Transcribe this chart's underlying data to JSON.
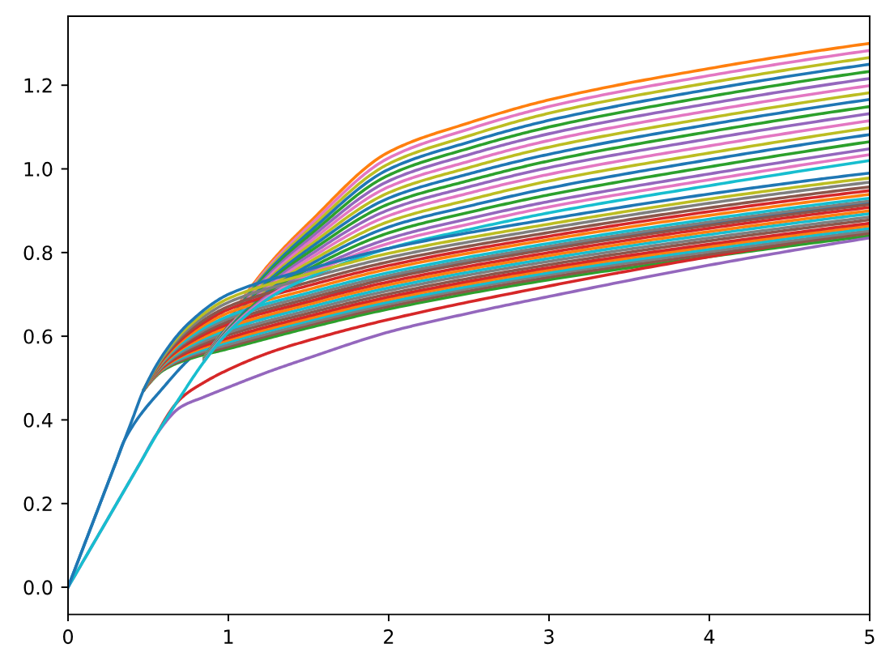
{
  "chart_data": {
    "type": "line",
    "xlim": [
      0,
      5
    ],
    "ylim": [
      -0.065,
      1.365
    ],
    "xticks": [
      0,
      1,
      2,
      3,
      4,
      5
    ],
    "yticks": [
      {
        "value": 0,
        "label": "0.0"
      },
      {
        "value": 0.2,
        "label": "0.2"
      },
      {
        "value": 0.4,
        "label": "0.4"
      },
      {
        "value": 0.6,
        "label": "0.6"
      },
      {
        "value": 0.8,
        "label": "0.8"
      },
      {
        "value": 1.0,
        "label": "1.0"
      },
      {
        "value": 1.2,
        "label": "1.2"
      }
    ],
    "series": [
      {
        "color": "#1f77b4",
        "x": [
          0,
          0.3,
          0.35,
          0.6,
          0.8,
          1,
          1.5,
          2,
          3,
          4,
          5
        ],
        "values": [
          0,
          0.3,
          0.35,
          0.48,
          0.56,
          0.61,
          0.68,
          0.74,
          0.81,
          0.87,
          0.92
        ]
      },
      {
        "color": "#ff7f0e",
        "x": [
          0.85,
          1,
          1.25,
          1.5,
          2,
          2.5,
          3,
          4,
          5
        ],
        "values": [
          0.55,
          0.64,
          0.77,
          0.87,
          1.04,
          1.11,
          1.165,
          1.24,
          1.3
        ]
      },
      {
        "color": "#2ca02c",
        "x": [
          0.47,
          0.6,
          0.75,
          1,
          1.5,
          2,
          3,
          4,
          5
        ],
        "values": [
          0.47,
          0.52,
          0.545,
          0.57,
          0.62,
          0.665,
          0.735,
          0.79,
          0.84
        ]
      },
      {
        "color": "#d62728",
        "x": [
          0.56,
          0.7,
          0.85,
          1,
          1.25,
          1.5,
          2,
          3,
          4,
          5
        ],
        "values": [
          0.37,
          0.45,
          0.49,
          0.52,
          0.56,
          0.59,
          0.64,
          0.72,
          0.79,
          0.85
        ]
      },
      {
        "color": "#9467bd",
        "x": [
          0,
          0.45,
          0.56,
          0.7,
          0.85,
          1,
          1.25,
          1.5,
          2,
          2.5,
          3,
          4,
          5
        ],
        "values": [
          0,
          0.297,
          0.37,
          0.43,
          0.455,
          0.478,
          0.515,
          0.548,
          0.61,
          0.655,
          0.695,
          0.77,
          0.835
        ]
      },
      {
        "color": "#8c564b",
        "x": [
          0.47,
          0.6,
          0.75,
          1,
          1.5,
          2,
          3,
          4,
          5
        ],
        "values": [
          0.47,
          0.522,
          0.548,
          0.575,
          0.626,
          0.671,
          0.741,
          0.796,
          0.846
        ]
      },
      {
        "color": "#e377c2",
        "x": [
          0.85,
          1,
          1.25,
          1.5,
          2,
          2.5,
          3,
          4,
          5
        ],
        "values": [
          0.549,
          0.638,
          0.765,
          0.862,
          1.026,
          1.095,
          1.149,
          1.223,
          1.283
        ]
      },
      {
        "color": "#7f7f7f",
        "x": [
          0.47,
          0.6,
          0.75,
          1,
          1.5,
          2,
          3,
          4,
          5
        ],
        "values": [
          0.47,
          0.523,
          0.552,
          0.58,
          0.631,
          0.677,
          0.747,
          0.802,
          0.852
        ]
      },
      {
        "color": "#bcbd22",
        "x": [
          0.85,
          1,
          1.25,
          1.5,
          2,
          2.5,
          3,
          4,
          5
        ],
        "values": [
          0.549,
          0.636,
          0.76,
          0.854,
          1.012,
          1.079,
          1.133,
          1.206,
          1.266
        ]
      },
      {
        "color": "#17becf",
        "x": [
          0.47,
          0.6,
          0.75,
          1,
          1.5,
          2,
          3,
          4,
          5
        ],
        "values": [
          0.47,
          0.525,
          0.555,
          0.586,
          0.637,
          0.682,
          0.752,
          0.808,
          0.858
        ]
      },
      {
        "color": "#1f77b4",
        "x": [
          0.85,
          1,
          1.25,
          1.5,
          2,
          2.5,
          3,
          4,
          5
        ],
        "values": [
          0.548,
          0.635,
          0.756,
          0.847,
          0.999,
          1.064,
          1.116,
          1.19,
          1.25
        ]
      },
      {
        "color": "#ff7f0e",
        "x": [
          0.47,
          0.6,
          0.75,
          1,
          1.5,
          2,
          3,
          4,
          5
        ],
        "values": [
          0.47,
          0.526,
          0.559,
          0.591,
          0.642,
          0.688,
          0.758,
          0.814,
          0.864
        ]
      },
      {
        "color": "#2ca02c",
        "x": [
          0.85,
          1,
          1.25,
          1.5,
          2,
          2.5,
          3,
          4,
          5
        ],
        "values": [
          0.548,
          0.633,
          0.751,
          0.839,
          0.985,
          1.049,
          1.1,
          1.173,
          1.233
        ]
      },
      {
        "color": "#d62728",
        "x": [
          0.47,
          0.6,
          0.75,
          1,
          1.5,
          2,
          3,
          4,
          5
        ],
        "values": [
          0.47,
          0.528,
          0.562,
          0.596,
          0.648,
          0.694,
          0.764,
          0.82,
          0.87
        ]
      },
      {
        "color": "#9467bd",
        "x": [
          0.85,
          1,
          1.25,
          1.5,
          2,
          2.5,
          3,
          4,
          5
        ],
        "values": [
          0.547,
          0.631,
          0.746,
          0.831,
          0.971,
          1.034,
          1.084,
          1.156,
          1.216
        ]
      },
      {
        "color": "#8c564b",
        "x": [
          0.47,
          0.6,
          0.75,
          1,
          1.5,
          2,
          3,
          4,
          5
        ],
        "values": [
          0.47,
          0.53,
          0.566,
          0.603,
          0.655,
          0.701,
          0.771,
          0.828,
          0.878
        ]
      },
      {
        "color": "#e377c2",
        "x": [
          0.85,
          1,
          1.25,
          1.5,
          2,
          2.5,
          3,
          4,
          5
        ],
        "values": [
          0.546,
          0.629,
          0.741,
          0.823,
          0.957,
          1.018,
          1.068,
          1.139,
          1.199
        ]
      },
      {
        "color": "#7f7f7f",
        "x": [
          0.47,
          0.6,
          0.75,
          1,
          1.5,
          2,
          3,
          4,
          5
        ],
        "values": [
          0.47,
          0.532,
          0.571,
          0.609,
          0.662,
          0.709,
          0.779,
          0.835,
          0.885
        ]
      },
      {
        "color": "#bcbd22",
        "x": [
          0.85,
          1,
          1.25,
          1.5,
          2,
          2.5,
          3,
          4,
          5
        ],
        "values": [
          0.546,
          0.627,
          0.736,
          0.815,
          0.943,
          1.003,
          1.052,
          1.122,
          1.182
        ]
      },
      {
        "color": "#17becf",
        "x": [
          0.47,
          0.6,
          0.75,
          1,
          1.5,
          2,
          3,
          4,
          5
        ],
        "values": [
          0.47,
          0.534,
          0.575,
          0.616,
          0.669,
          0.716,
          0.786,
          0.843,
          0.893
        ]
      },
      {
        "color": "#1f77b4",
        "x": [
          0.85,
          1,
          1.25,
          1.5,
          2,
          2.5,
          3,
          4,
          5
        ],
        "values": [
          0.545,
          0.626,
          0.732,
          0.808,
          0.93,
          0.988,
          1.035,
          1.106,
          1.166
        ]
      },
      {
        "color": "#ff7f0e",
        "x": [
          0.47,
          0.6,
          0.75,
          1,
          1.5,
          2,
          3,
          4,
          5
        ],
        "values": [
          0.47,
          0.536,
          0.579,
          0.622,
          0.676,
          0.723,
          0.793,
          0.85,
          0.9
        ]
      },
      {
        "color": "#2ca02c",
        "x": [
          0.85,
          1,
          1.25,
          1.5,
          2,
          2.5,
          3,
          4,
          5
        ],
        "values": [
          0.545,
          0.624,
          0.727,
          0.8,
          0.916,
          0.972,
          1.019,
          1.089,
          1.149
        ]
      },
      {
        "color": "#d62728",
        "x": [
          0.47,
          0.6,
          0.75,
          1,
          1.5,
          2,
          3,
          4,
          5
        ],
        "values": [
          0.47,
          0.538,
          0.583,
          0.629,
          0.683,
          0.73,
          0.8,
          0.858,
          0.908
        ]
      },
      {
        "color": "#9467bd",
        "x": [
          0.85,
          1,
          1.25,
          1.5,
          2,
          2.5,
          3,
          4,
          5
        ],
        "values": [
          0.544,
          0.622,
          0.722,
          0.792,
          0.902,
          0.957,
          1.003,
          1.072,
          1.132
        ]
      },
      {
        "color": "#8c564b",
        "x": [
          0.47,
          0.6,
          0.75,
          1,
          1.5,
          2,
          3,
          4,
          5
        ],
        "values": [
          0.47,
          0.54,
          0.588,
          0.635,
          0.69,
          0.738,
          0.808,
          0.865,
          0.915
        ]
      },
      {
        "color": "#e377c2",
        "x": [
          0.85,
          1,
          1.25,
          1.5,
          2,
          2.5,
          3,
          4,
          5
        ],
        "values": [
          0.543,
          0.62,
          0.717,
          0.784,
          0.888,
          0.942,
          0.987,
          1.055,
          1.115
        ]
      },
      {
        "color": "#7f7f7f",
        "x": [
          0.47,
          0.6,
          0.75,
          1,
          1.5,
          2,
          3,
          4,
          5
        ],
        "values": [
          0.47,
          0.542,
          0.592,
          0.642,
          0.697,
          0.745,
          0.815,
          0.873,
          0.923
        ]
      },
      {
        "color": "#bcbd22",
        "x": [
          0.85,
          1,
          1.25,
          1.5,
          2,
          2.5,
          3,
          4,
          5
        ],
        "values": [
          0.543,
          0.618,
          0.712,
          0.776,
          0.874,
          0.926,
          0.971,
          1.038,
          1.098
        ]
      },
      {
        "color": "#17becf",
        "x": [
          0.47,
          0.6,
          0.75,
          1,
          1.5,
          2,
          3,
          4,
          5
        ],
        "values": [
          0.47,
          0.544,
          0.596,
          0.648,
          0.704,
          0.752,
          0.822,
          0.88,
          0.93
        ]
      },
      {
        "color": "#1f77b4",
        "x": [
          0.85,
          1,
          1.25,
          1.5,
          2,
          2.5,
          3,
          4,
          5
        ],
        "values": [
          0.542,
          0.617,
          0.708,
          0.769,
          0.861,
          0.911,
          0.954,
          1.022,
          1.082
        ]
      },
      {
        "color": "#ff7f0e",
        "x": [
          0.47,
          0.6,
          0.75,
          1,
          1.5,
          2,
          3,
          4,
          5
        ],
        "values": [
          0.47,
          0.546,
          0.601,
          0.656,
          0.712,
          0.761,
          0.831,
          0.889,
          0.939
        ]
      },
      {
        "color": "#2ca02c",
        "x": [
          0.85,
          1,
          1.25,
          1.5,
          2,
          2.5,
          3,
          4,
          5
        ],
        "values": [
          0.542,
          0.615,
          0.703,
          0.761,
          0.847,
          0.896,
          0.938,
          1.005,
          1.065
        ]
      },
      {
        "color": "#d62728",
        "x": [
          0.47,
          0.6,
          0.75,
          1,
          1.5,
          2,
          3,
          4,
          5
        ],
        "values": [
          0.47,
          0.549,
          0.606,
          0.664,
          0.721,
          0.769,
          0.839,
          0.898,
          0.948
        ]
      },
      {
        "color": "#9467bd",
        "x": [
          0.85,
          1,
          1.25,
          1.5,
          2,
          2.5,
          3,
          4,
          5
        ],
        "values": [
          0.541,
          0.613,
          0.698,
          0.753,
          0.833,
          0.881,
          0.922,
          0.988,
          1.048
        ]
      },
      {
        "color": "#8c564b",
        "x": [
          0.47,
          0.6,
          0.75,
          1,
          1.5,
          2,
          3,
          4,
          5
        ],
        "values": [
          0.47,
          0.551,
          0.611,
          0.671,
          0.729,
          0.778,
          0.848,
          0.907,
          0.957
        ]
      },
      {
        "color": "#e377c2",
        "x": [
          0.85,
          1,
          1.25,
          1.5,
          2,
          2.5,
          3,
          4,
          5
        ],
        "values": [
          0.541,
          0.612,
          0.694,
          0.747,
          0.822,
          0.868,
          0.909,
          0.974,
          1.034
        ]
      },
      {
        "color": "#7f7f7f",
        "x": [
          0.47,
          0.6,
          0.75,
          1,
          1.5,
          2,
          3,
          4,
          5
        ],
        "values": [
          0.47,
          0.554,
          0.617,
          0.681,
          0.739,
          0.788,
          0.858,
          0.918,
          0.968
        ]
      },
      {
        "color": "#17becf",
        "x": [
          0,
          0.45,
          0.56,
          0.7,
          0.85,
          1,
          1.25,
          1.5,
          2,
          2.5,
          3,
          4,
          5
        ],
        "values": [
          0,
          0.297,
          0.37,
          0.455,
          0.54,
          0.61,
          0.69,
          0.74,
          0.81,
          0.855,
          0.895,
          0.96,
          1.02
        ]
      },
      {
        "color": "#bcbd22",
        "x": [
          0.47,
          0.6,
          0.75,
          1,
          1.5,
          2,
          3,
          4,
          5
        ],
        "values": [
          0.47,
          0.557,
          0.623,
          0.69,
          0.749,
          0.798,
          0.868,
          0.928,
          0.978
        ]
      },
      {
        "color": "#1f77b4",
        "x": [
          0,
          0.4,
          0.47,
          0.6,
          0.75,
          1,
          1.5,
          2,
          3,
          4,
          5
        ],
        "values": [
          0,
          0.4,
          0.47,
          0.56,
          0.63,
          0.7,
          0.76,
          0.81,
          0.88,
          0.94,
          0.99
        ]
      }
    ]
  }
}
